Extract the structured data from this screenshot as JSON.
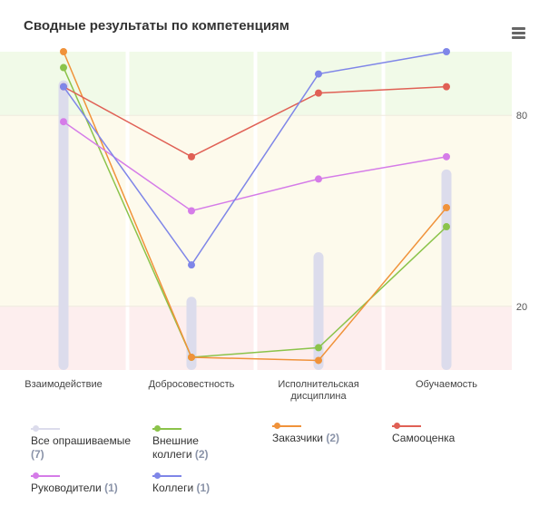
{
  "header": {
    "title": "Сводные результаты по компетенциям"
  },
  "chart_data": {
    "type": "line",
    "title": "Сводные результаты по компетенциям",
    "categories": [
      "Взаимодействие",
      "Добросовестность",
      "Исполнительская дисциплина",
      "Обучаемость"
    ],
    "ylim": [
      0,
      100
    ],
    "yticks": [
      20,
      80
    ],
    "bands": [
      {
        "from": 0,
        "to": 20,
        "color": "#fdeeee"
      },
      {
        "from": 20,
        "to": 80,
        "color": "#fdfaec"
      },
      {
        "from": 80,
        "to": 100,
        "color": "#f1fae8"
      }
    ],
    "bar_series": {
      "name": "Все опрашиваемые",
      "count": "(7)",
      "color": "#dcdcec",
      "values": [
        91,
        23,
        37,
        63
      ]
    },
    "series": [
      {
        "name": "Внешние коллеги",
        "count": "(2)",
        "color": "#8bc34a",
        "values": [
          95,
          4,
          7,
          45
        ]
      },
      {
        "name": "Заказчики",
        "count": "(2)",
        "color": "#f0923a",
        "values": [
          100,
          4,
          3,
          51
        ]
      },
      {
        "name": "Самооценка",
        "count": "",
        "color": "#e06055",
        "values": [
          89,
          67,
          87,
          89
        ]
      },
      {
        "name": "Руководители",
        "count": "(1)",
        "color": "#d57ce8",
        "values": [
          78,
          50,
          60,
          67
        ]
      },
      {
        "name": "Коллеги",
        "count": "(1)",
        "color": "#7f86e8",
        "values": [
          89,
          33,
          93,
          100
        ]
      }
    ],
    "legend": "bottom",
    "grid": true
  }
}
